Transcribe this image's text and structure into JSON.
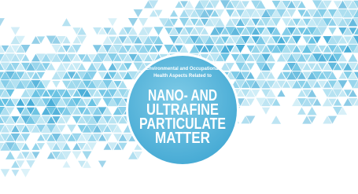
{
  "subtitle_lines": [
    "Environmental and Occupational",
    "Health Aspects Related to"
  ],
  "title_lines": [
    "NANO- AND",
    "ULTRAFINE",
    "PARTICULATE",
    "MATTER"
  ]
}
